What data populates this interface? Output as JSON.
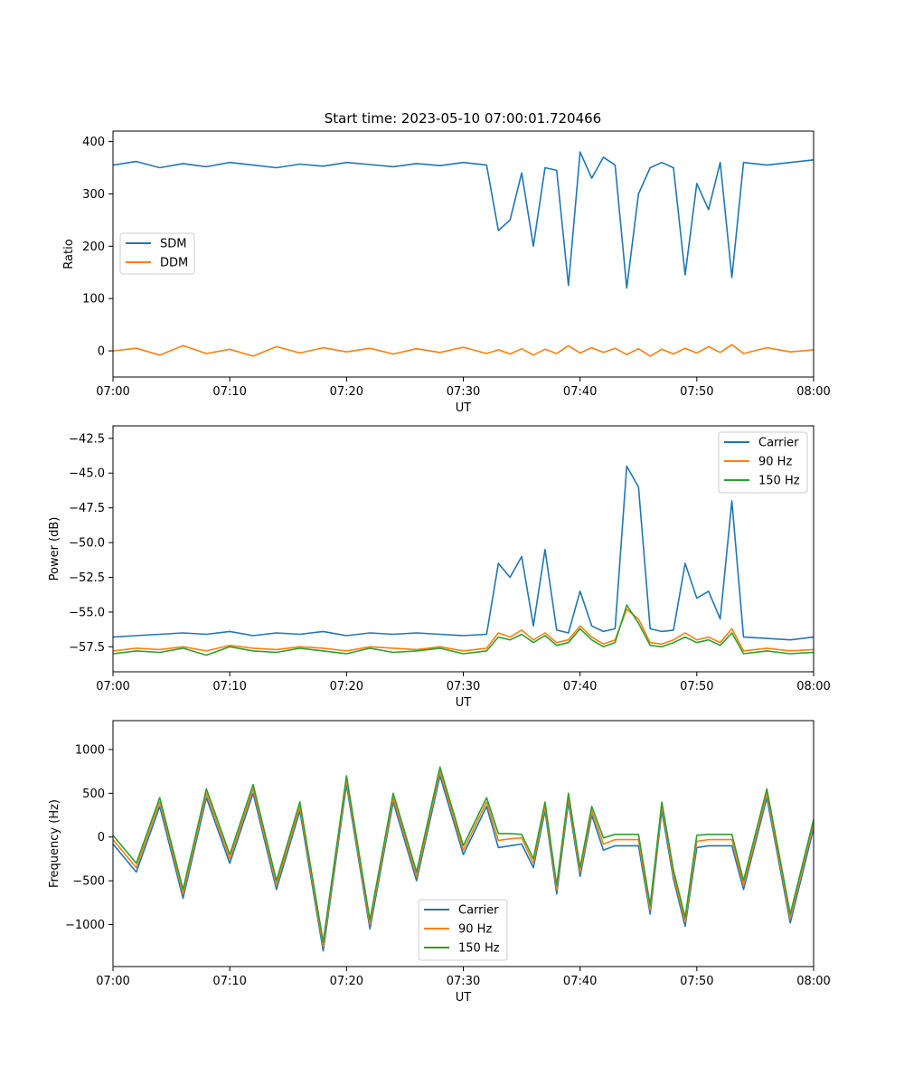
{
  "figure": {
    "title": "Start time: 2023-05-10 07:00:01.720466"
  },
  "chart_data": [
    {
      "type": "line",
      "title": "Start time: 2023-05-10 07:00:01.720466",
      "xlabel": "UT",
      "ylabel": "Ratio",
      "xlim": [
        "07:00",
        "08:00"
      ],
      "x_ticks": [
        "07:00",
        "07:10",
        "07:20",
        "07:30",
        "07:40",
        "07:50",
        "08:00"
      ],
      "ylim": [
        -50,
        420
      ],
      "y_ticks": [
        0,
        100,
        200,
        300,
        400
      ],
      "y_tick_labels": [
        "0",
        "100",
        "200",
        "300",
        "400"
      ],
      "grid": false,
      "legend": "center-left",
      "x": [
        "07:00",
        "07:02",
        "07:04",
        "07:06",
        "07:08",
        "07:10",
        "07:12",
        "07:14",
        "07:16",
        "07:18",
        "07:20",
        "07:22",
        "07:24",
        "07:26",
        "07:28",
        "07:30",
        "07:32",
        "07:33",
        "07:34",
        "07:35",
        "07:36",
        "07:37",
        "07:38",
        "07:39",
        "07:40",
        "07:41",
        "07:42",
        "07:43",
        "07:44",
        "07:45",
        "07:46",
        "07:47",
        "07:48",
        "07:49",
        "07:50",
        "07:51",
        "07:52",
        "07:53",
        "07:54",
        "07:56",
        "07:58",
        "08:00"
      ],
      "series": [
        {
          "name": "SDM",
          "color": "#1f77b4",
          "values": [
            355,
            362,
            350,
            358,
            352,
            360,
            355,
            350,
            357,
            353,
            360,
            356,
            352,
            358,
            354,
            360,
            355,
            230,
            250,
            340,
            200,
            350,
            345,
            125,
            380,
            330,
            370,
            355,
            120,
            300,
            350,
            360,
            350,
            145,
            320,
            270,
            360,
            140,
            360,
            355,
            360,
            365
          ]
        },
        {
          "name": "DDM",
          "color": "#ff7f0e",
          "values": [
            0,
            5,
            -8,
            10,
            -5,
            3,
            -10,
            8,
            -4,
            6,
            -2,
            5,
            -6,
            4,
            -3,
            7,
            -5,
            2,
            -6,
            4,
            -8,
            3,
            -5,
            10,
            -4,
            6,
            -3,
            5,
            -7,
            4,
            -10,
            3,
            -6,
            5,
            -4,
            8,
            -3,
            12,
            -5,
            6,
            -2,
            2
          ]
        }
      ]
    },
    {
      "type": "line",
      "title": "",
      "xlabel": "UT",
      "ylabel": "Power (dB)",
      "xlim": [
        "07:00",
        "08:00"
      ],
      "x_ticks": [
        "07:00",
        "07:10",
        "07:20",
        "07:30",
        "07:40",
        "07:50",
        "08:00"
      ],
      "ylim": [
        -59.3,
        -41.6
      ],
      "y_ticks": [
        -57.5,
        -55.0,
        -52.5,
        -50.0,
        -47.5,
        -45.0,
        -42.5
      ],
      "y_tick_labels": [
        "−57.5",
        "−55.0",
        "−52.5",
        "−50.0",
        "−47.5",
        "−45.0",
        "−42.5"
      ],
      "grid": false,
      "legend": "top-right",
      "x": [
        "07:00",
        "07:02",
        "07:04",
        "07:06",
        "07:08",
        "07:10",
        "07:12",
        "07:14",
        "07:16",
        "07:18",
        "07:20",
        "07:22",
        "07:24",
        "07:26",
        "07:28",
        "07:30",
        "07:32",
        "07:33",
        "07:34",
        "07:35",
        "07:36",
        "07:37",
        "07:38",
        "07:39",
        "07:40",
        "07:41",
        "07:42",
        "07:43",
        "07:44",
        "07:45",
        "07:46",
        "07:47",
        "07:48",
        "07:49",
        "07:50",
        "07:51",
        "07:52",
        "07:53",
        "07:54",
        "07:56",
        "07:58",
        "08:00"
      ],
      "series": [
        {
          "name": "Carrier",
          "color": "#1f77b4",
          "values": [
            -56.8,
            -56.7,
            -56.6,
            -56.5,
            -56.6,
            -56.4,
            -56.7,
            -56.5,
            -56.6,
            -56.4,
            -56.7,
            -56.5,
            -56.6,
            -56.5,
            -56.6,
            -56.7,
            -56.6,
            -51.5,
            -52.5,
            -51.0,
            -56.0,
            -50.5,
            -56.3,
            -56.5,
            -53.5,
            -56.0,
            -56.4,
            -56.2,
            -44.5,
            -46.0,
            -56.2,
            -56.4,
            -56.3,
            -51.5,
            -54.0,
            -53.5,
            -55.5,
            -47.0,
            -56.8,
            -56.9,
            -57.0,
            -56.8
          ]
        },
        {
          "name": "90 Hz",
          "color": "#ff7f0e",
          "values": [
            -57.8,
            -57.6,
            -57.7,
            -57.5,
            -57.8,
            -57.4,
            -57.6,
            -57.7,
            -57.5,
            -57.6,
            -57.8,
            -57.5,
            -57.6,
            -57.7,
            -57.5,
            -57.8,
            -57.6,
            -56.5,
            -56.8,
            -56.3,
            -57.0,
            -56.5,
            -57.2,
            -57.0,
            -56.0,
            -56.8,
            -57.3,
            -57.0,
            -54.8,
            -55.5,
            -57.2,
            -57.3,
            -57.0,
            -56.5,
            -57.0,
            -56.8,
            -57.2,
            -56.2,
            -57.8,
            -57.6,
            -57.8,
            -57.7
          ]
        },
        {
          "name": "150 Hz",
          "color": "#2ca02c",
          "values": [
            -58.0,
            -57.8,
            -57.9,
            -57.6,
            -58.1,
            -57.5,
            -57.8,
            -57.9,
            -57.6,
            -57.8,
            -58.0,
            -57.6,
            -57.9,
            -57.8,
            -57.6,
            -58.0,
            -57.8,
            -56.8,
            -57.0,
            -56.6,
            -57.2,
            -56.7,
            -57.4,
            -57.2,
            -56.2,
            -57.0,
            -57.5,
            -57.2,
            -54.5,
            -55.8,
            -57.4,
            -57.5,
            -57.2,
            -56.8,
            -57.2,
            -57.0,
            -57.4,
            -56.5,
            -58.0,
            -57.8,
            -58.0,
            -57.9
          ]
        }
      ]
    },
    {
      "type": "line",
      "title": "",
      "xlabel": "UT",
      "ylabel": "Frequency (Hz)",
      "xlim": [
        "07:00",
        "08:00"
      ],
      "x_ticks": [
        "07:00",
        "07:10",
        "07:20",
        "07:30",
        "07:40",
        "07:50",
        "08:00"
      ],
      "ylim": [
        -1480,
        1330
      ],
      "y_ticks": [
        -1000,
        -500,
        0,
        500,
        1000
      ],
      "y_tick_labels": [
        "−1000",
        "−500",
        "0",
        "500",
        "1000"
      ],
      "grid": false,
      "legend": "lower-center",
      "x": [
        "07:00",
        "07:02",
        "07:04",
        "07:06",
        "07:08",
        "07:10",
        "07:12",
        "07:14",
        "07:16",
        "07:18",
        "07:20",
        "07:22",
        "07:24",
        "07:26",
        "07:28",
        "07:30",
        "07:32",
        "07:33",
        "07:34",
        "07:35",
        "07:36",
        "07:37",
        "07:38",
        "07:39",
        "07:40",
        "07:41",
        "07:42",
        "07:43",
        "07:44",
        "07:45",
        "07:46",
        "07:47",
        "07:48",
        "07:49",
        "07:50",
        "07:51",
        "07:52",
        "07:53",
        "07:54",
        "07:56",
        "07:58",
        "08:00"
      ],
      "series": [
        {
          "name": "Carrier",
          "color": "#1f77b4",
          "values": [
            -80,
            -400,
            350,
            -700,
            450,
            -300,
            500,
            -600,
            300,
            -1300,
            600,
            -1050,
            400,
            -500,
            700,
            -200,
            350,
            -120,
            -100,
            -80,
            -350,
            300,
            -650,
            400,
            -450,
            250,
            -150,
            -100,
            -100,
            -100,
            -880,
            300,
            -480,
            -1020,
            -120,
            -100,
            -100,
            -100,
            -600,
            450,
            -980,
            100
          ]
        },
        {
          "name": "90 Hz",
          "color": "#ff7f0e",
          "values": [
            -30,
            -350,
            400,
            -650,
            500,
            -250,
            550,
            -550,
            350,
            -1250,
            650,
            -1000,
            450,
            -450,
            750,
            -150,
            400,
            -40,
            -20,
            -10,
            -300,
            350,
            -600,
            450,
            -400,
            300,
            -80,
            -30,
            -30,
            -30,
            -830,
            350,
            -430,
            -970,
            -50,
            -30,
            -30,
            -30,
            -550,
            500,
            -930,
            150
          ]
        },
        {
          "name": "150 Hz",
          "color": "#2ca02c",
          "values": [
            20,
            -300,
            450,
            -600,
            550,
            -200,
            600,
            -500,
            400,
            -1200,
            700,
            -950,
            500,
            -400,
            800,
            -100,
            450,
            40,
            40,
            30,
            -250,
            400,
            -550,
            500,
            -350,
            350,
            -10,
            30,
            30,
            30,
            -780,
            400,
            -380,
            -920,
            20,
            30,
            30,
            30,
            -500,
            550,
            -880,
            200
          ]
        }
      ]
    }
  ]
}
